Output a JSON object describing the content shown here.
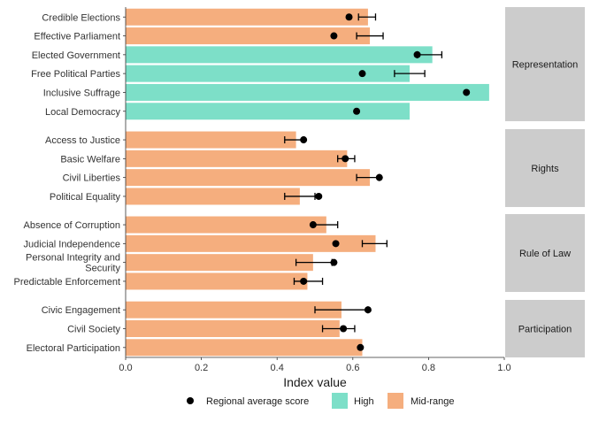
{
  "chart_data": {
    "type": "bar",
    "orientation": "horizontal",
    "xlabel": "Index value",
    "xlim": [
      0,
      1
    ],
    "xticks": [
      "0.0",
      "0.2",
      "0.4",
      "0.6",
      "0.8",
      "1.0"
    ],
    "grid": false,
    "legend_position": "bottom",
    "colors": {
      "High": "#7ddfc8",
      "Mid-range": "#f5ae7e",
      "panel_strip": "#cccccc",
      "point": "#000000"
    },
    "legend": {
      "point_label": "Regional average score",
      "high_label": "High",
      "mid_label": "Mid-range"
    },
    "panels": [
      {
        "name": "Representation",
        "rows": [
          {
            "label": "Credible Elections",
            "value": 0.64,
            "category": "Mid-range",
            "avg": 0.59,
            "err_low": 0.615,
            "err_high": 0.66
          },
          {
            "label": "Effective Parliament",
            "value": 0.645,
            "category": "Mid-range",
            "avg": 0.55,
            "err_low": 0.61,
            "err_high": 0.68
          },
          {
            "label": "Elected Government",
            "value": 0.81,
            "category": "High",
            "avg": 0.77,
            "err_low": 0.77,
            "err_high": 0.835
          },
          {
            "label": "Free Political Parties",
            "value": 0.75,
            "category": "High",
            "avg": 0.625,
            "err_low": 0.71,
            "err_high": 0.79
          },
          {
            "label": "Inclusive Suffrage",
            "value": 0.96,
            "category": "High",
            "avg": 0.9,
            "err_low": null,
            "err_high": null
          },
          {
            "label": "Local Democracy",
            "value": 0.75,
            "category": "High",
            "avg": 0.61,
            "err_low": null,
            "err_high": null
          }
        ]
      },
      {
        "name": "Rights",
        "rows": [
          {
            "label": "Access to Justice",
            "value": 0.45,
            "category": "Mid-range",
            "avg": 0.47,
            "err_low": 0.42,
            "err_high": 0.47
          },
          {
            "label": "Basic Welfare",
            "value": 0.585,
            "category": "Mid-range",
            "avg": 0.58,
            "err_low": 0.56,
            "err_high": 0.605
          },
          {
            "label": "Civil Liberties",
            "value": 0.645,
            "category": "Mid-range",
            "avg": 0.67,
            "err_low": 0.61,
            "err_high": 0.67
          },
          {
            "label": "Political Equality",
            "value": 0.46,
            "category": "Mid-range",
            "avg": 0.51,
            "err_low": 0.42,
            "err_high": 0.5
          }
        ]
      },
      {
        "name": "Rule of Law",
        "rows": [
          {
            "label": "Absence of Corruption",
            "value": 0.53,
            "category": "Mid-range",
            "avg": 0.495,
            "err_low": 0.495,
            "err_high": 0.56
          },
          {
            "label": "Judicial Independence",
            "value": 0.66,
            "category": "Mid-range",
            "avg": 0.555,
            "err_low": 0.625,
            "err_high": 0.69
          },
          {
            "label": "Personal Integrity and\nSecurity",
            "value": 0.495,
            "category": "Mid-range",
            "avg": 0.55,
            "err_low": 0.45,
            "err_high": 0.545
          },
          {
            "label": "Predictable Enforcement",
            "value": 0.48,
            "category": "Mid-range",
            "avg": 0.47,
            "err_low": 0.445,
            "err_high": 0.52
          }
        ]
      },
      {
        "name": "Participation",
        "rows": [
          {
            "label": "Civic Engagement",
            "value": 0.57,
            "category": "Mid-range",
            "avg": 0.64,
            "err_low": 0.5,
            "err_high": 0.64
          },
          {
            "label": "Civil Society",
            "value": 0.565,
            "category": "Mid-range",
            "avg": 0.575,
            "err_low": 0.52,
            "err_high": 0.605
          },
          {
            "label": "Electoral Participation",
            "value": 0.625,
            "category": "Mid-range",
            "avg": 0.62,
            "err_low": null,
            "err_high": null
          }
        ]
      }
    ]
  }
}
